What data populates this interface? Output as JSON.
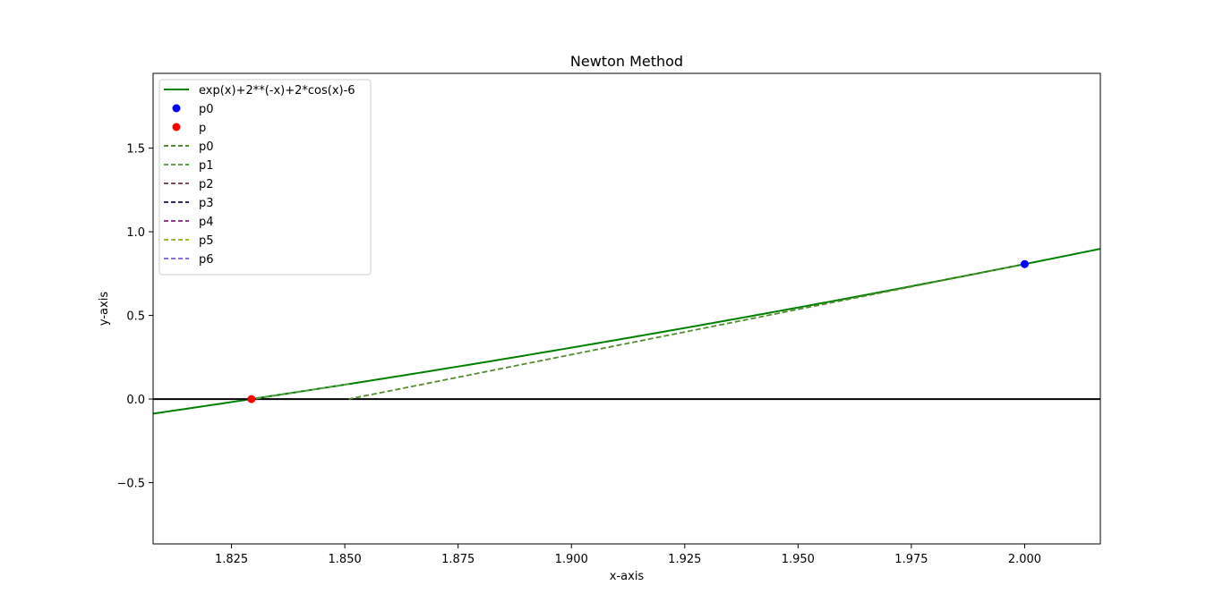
{
  "chart_data": {
    "type": "line",
    "title": "Newton Method",
    "xlabel": "x-axis",
    "ylabel": "y-axis",
    "xlim": [
      1.8077,
      2.0167
    ],
    "ylim": [
      -0.866,
      1.947
    ],
    "xticks": [
      "1.825",
      "1.850",
      "1.875",
      "1.900",
      "1.925",
      "1.950",
      "1.975",
      "2.000"
    ],
    "xtick_values": [
      1.825,
      1.85,
      1.875,
      1.9,
      1.925,
      1.95,
      1.975,
      2.0
    ],
    "yticks": [
      "−0.5",
      "0.0",
      "0.5",
      "1.0",
      "1.5"
    ],
    "ytick_values": [
      -0.5,
      0.0,
      0.5,
      1.0,
      1.5
    ],
    "grid": false,
    "legend_position": "upper-left",
    "function": {
      "name": "exp(x)+2**(-x)+2*cos(x)-6",
      "color": "#008000",
      "x_range": [
        1.8077,
        2.0167
      ]
    },
    "points": [
      {
        "name": "p0",
        "x": 2.0,
        "y": 0.8067,
        "color": "#0000ff"
      },
      {
        "name": "p",
        "x": 1.8294,
        "y": 0.0,
        "color": "#ff0000"
      }
    ],
    "tangents": [
      {
        "name": "p0",
        "color": "#558b2f",
        "x": [
          2.0,
          1.8509
        ],
        "y": [
          0.8067,
          0.0
        ]
      },
      {
        "name": "p1",
        "color": "#5d9e4a",
        "x": [
          1.8509,
          1.8298
        ],
        "y": [
          0.0906,
          0.0
        ]
      },
      {
        "name": "p2",
        "color": "#7b4a55",
        "x": [
          1.8298,
          1.8294
        ],
        "y": [
          0.0017,
          0.0
        ]
      },
      {
        "name": "p3",
        "color": "#2e2e66",
        "x": [
          1.8294,
          1.8294
        ],
        "y": [
          0.0,
          0.0
        ]
      },
      {
        "name": "p4",
        "color": "#a0348c",
        "x": [
          1.8294,
          1.8294
        ],
        "y": [
          0.0,
          0.0
        ]
      },
      {
        "name": "p5",
        "color": "#a6b422",
        "x": [
          1.8294,
          1.8294
        ],
        "y": [
          0.0,
          0.0
        ]
      },
      {
        "name": "p6",
        "color": "#8f6ae8",
        "x": [
          1.8294,
          1.8294
        ],
        "y": [
          0.0,
          0.0
        ]
      }
    ],
    "zero_line": {
      "y": 0.0,
      "color": "#000000"
    }
  }
}
